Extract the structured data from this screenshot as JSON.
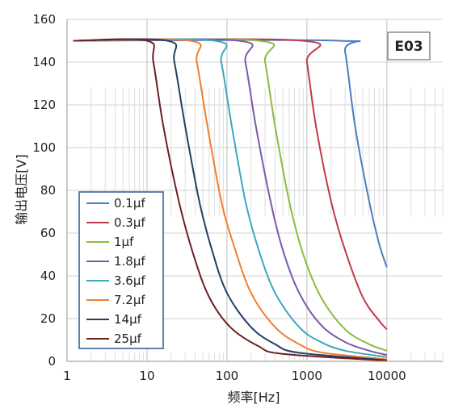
{
  "chart_data": {
    "type": "line",
    "title": "",
    "badge": "E03",
    "xlabel": "频率[Hz]",
    "ylabel": "输出电压[V]",
    "xscale": "log",
    "xlim": [
      1,
      50000
    ],
    "ylim": [
      0,
      160
    ],
    "xticks": [
      1,
      10,
      100,
      1000,
      10000
    ],
    "yticks": [
      0,
      20,
      40,
      60,
      80,
      100,
      120,
      140,
      160
    ],
    "grid": true,
    "legend_position": "lower-left",
    "plateau": 150,
    "series": [
      {
        "name": "0.1μf",
        "color": "#4a7ebf",
        "points": [
          [
            1.2,
            150
          ],
          [
            2500,
            150
          ],
          [
            3000,
            145
          ],
          [
            4000,
            110
          ],
          [
            6000,
            75
          ],
          [
            8000,
            55
          ],
          [
            10000,
            44
          ]
        ]
      },
      {
        "name": "0.3μf",
        "color": "#c0394e",
        "points": [
          [
            1.2,
            150
          ],
          [
            880,
            150
          ],
          [
            1000,
            140
          ],
          [
            1300,
            110
          ],
          [
            2000,
            75
          ],
          [
            3000,
            52
          ],
          [
            5000,
            30
          ],
          [
            8000,
            19
          ],
          [
            10000,
            15
          ]
        ]
      },
      {
        "name": "1μf",
        "color": "#8bbb3f",
        "points": [
          [
            1.2,
            150
          ],
          [
            250,
            150
          ],
          [
            300,
            140
          ],
          [
            400,
            110
          ],
          [
            600,
            75
          ],
          [
            900,
            50
          ],
          [
            1500,
            30
          ],
          [
            3000,
            15
          ],
          [
            6000,
            8
          ],
          [
            10000,
            5
          ]
        ]
      },
      {
        "name": "1.8μf",
        "color": "#7a58a8",
        "points": [
          [
            1.2,
            150
          ],
          [
            140,
            150
          ],
          [
            170,
            140
          ],
          [
            230,
            110
          ],
          [
            350,
            75
          ],
          [
            500,
            52
          ],
          [
            800,
            32
          ],
          [
            1500,
            17
          ],
          [
            3000,
            9
          ],
          [
            6000,
            5
          ],
          [
            10000,
            3
          ]
        ]
      },
      {
        "name": "3.6μf",
        "color": "#3ea6c0",
        "points": [
          [
            1.2,
            150
          ],
          [
            70,
            150
          ],
          [
            85,
            140
          ],
          [
            115,
            110
          ],
          [
            170,
            75
          ],
          [
            250,
            52
          ],
          [
            400,
            32
          ],
          [
            800,
            16
          ],
          [
            1500,
            9
          ],
          [
            3000,
            5
          ],
          [
            10000,
            2
          ]
        ]
      },
      {
        "name": "7.2μf",
        "color": "#ef7f2d",
        "points": [
          [
            1.2,
            150
          ],
          [
            35,
            150
          ],
          [
            42,
            140
          ],
          [
            57,
            110
          ],
          [
            85,
            75
          ],
          [
            120,
            55
          ],
          [
            200,
            32
          ],
          [
            400,
            16
          ],
          [
            800,
            8
          ],
          [
            1600,
            4
          ],
          [
            10000,
            1
          ]
        ]
      },
      {
        "name": "14μf",
        "color": "#233e66",
        "points": [
          [
            1.2,
            150
          ],
          [
            18,
            150
          ],
          [
            22,
            140
          ],
          [
            30,
            110
          ],
          [
            45,
            75
          ],
          [
            65,
            52
          ],
          [
            100,
            32
          ],
          [
            200,
            16
          ],
          [
            400,
            8
          ],
          [
            800,
            4
          ],
          [
            10000,
            0.5
          ]
        ]
      },
      {
        "name": "25μf",
        "color": "#6b2024",
        "points": [
          [
            1.2,
            150
          ],
          [
            10,
            150
          ],
          [
            12,
            140
          ],
          [
            16,
            110
          ],
          [
            25,
            75
          ],
          [
            38,
            50
          ],
          [
            60,
            30
          ],
          [
            110,
            16
          ],
          [
            250,
            7
          ],
          [
            500,
            3.5
          ],
          [
            10000,
            0.3
          ]
        ]
      }
    ]
  }
}
